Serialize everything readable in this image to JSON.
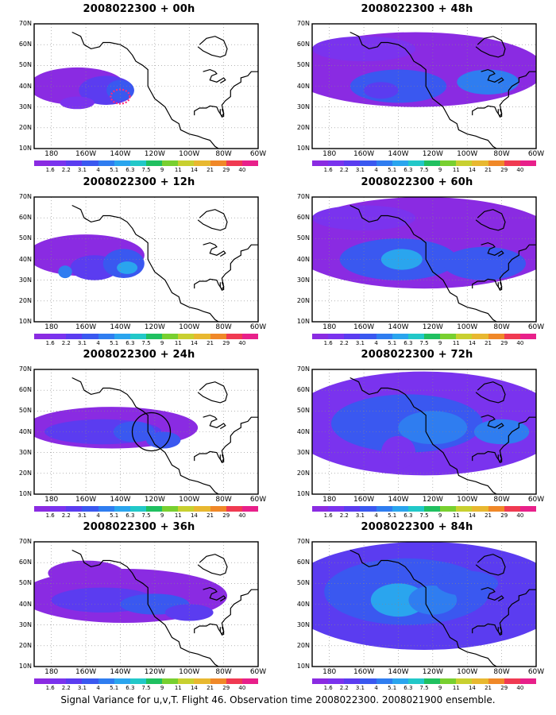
{
  "caption": "Signal Variance for u,v,T. Flight 46. Observation time 2008022300. 2008021900 ensemble.",
  "axes": {
    "lat_labels": [
      "70N",
      "60N",
      "50N",
      "40N",
      "30N",
      "20N",
      "10N"
    ],
    "lon_labels": [
      "180",
      "160W",
      "140W",
      "120W",
      "100W",
      "80W",
      "60W"
    ]
  },
  "colorbar": {
    "levels": [
      "1.6",
      "2.2",
      "3.1",
      "4",
      "5.1",
      "6.3",
      "7.5",
      "9",
      "11",
      "14",
      "21",
      "29",
      "40"
    ],
    "colors": [
      "#8a2be2",
      "#7a33ee",
      "#5b3cf0",
      "#3a58f0",
      "#2f7df0",
      "#2aa5ee",
      "#22c8c8",
      "#20c060",
      "#78d030",
      "#c8d030",
      "#e8b830",
      "#f08828",
      "#f03a52",
      "#e8208a"
    ]
  },
  "panels": [
    {
      "title": "2008022300 + 00h",
      "hour": 0,
      "col": 0,
      "row": 0
    },
    {
      "title": "2008022300 + 12h",
      "hour": 12,
      "col": 0,
      "row": 1
    },
    {
      "title": "2008022300 + 24h",
      "hour": 24,
      "col": 0,
      "row": 2
    },
    {
      "title": "2008022300 + 36h",
      "hour": 36,
      "col": 0,
      "row": 3
    },
    {
      "title": "2008022300 + 48h",
      "hour": 48,
      "col": 1,
      "row": 0
    },
    {
      "title": "2008022300 + 60h",
      "hour": 60,
      "col": 1,
      "row": 1
    },
    {
      "title": "2008022300 + 72h",
      "hour": 72,
      "col": 1,
      "row": 2
    },
    {
      "title": "2008022300 + 84h",
      "hour": 84,
      "col": 1,
      "row": 3
    }
  ]
}
